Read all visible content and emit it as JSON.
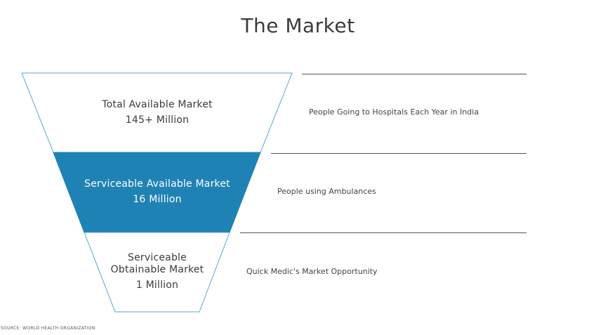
{
  "title": "The Market",
  "funnel": {
    "tiers": [
      {
        "label": "Total Available Market",
        "value": "145+ Million",
        "description": "People Going to Hospitals Each Year in India",
        "fill": "#ffffff",
        "text_color": "#3b3b3b"
      },
      {
        "label": "Serviceable Available Market",
        "value": "16 Million",
        "description": "People using Ambulances",
        "fill": "#1f82b4",
        "text_color": "#ffffff"
      },
      {
        "label_line1": "Serviceable",
        "label_line2": "Obtainable Market",
        "value": "1 Million",
        "description": "Quick Medic's Market Opportunity",
        "fill": "#ffffff",
        "text_color": "#3b3b3b"
      }
    ],
    "outline_color": "#5aa6cf"
  },
  "source": "SOURCE: WORLD HEALTH ORGANIZATION"
}
